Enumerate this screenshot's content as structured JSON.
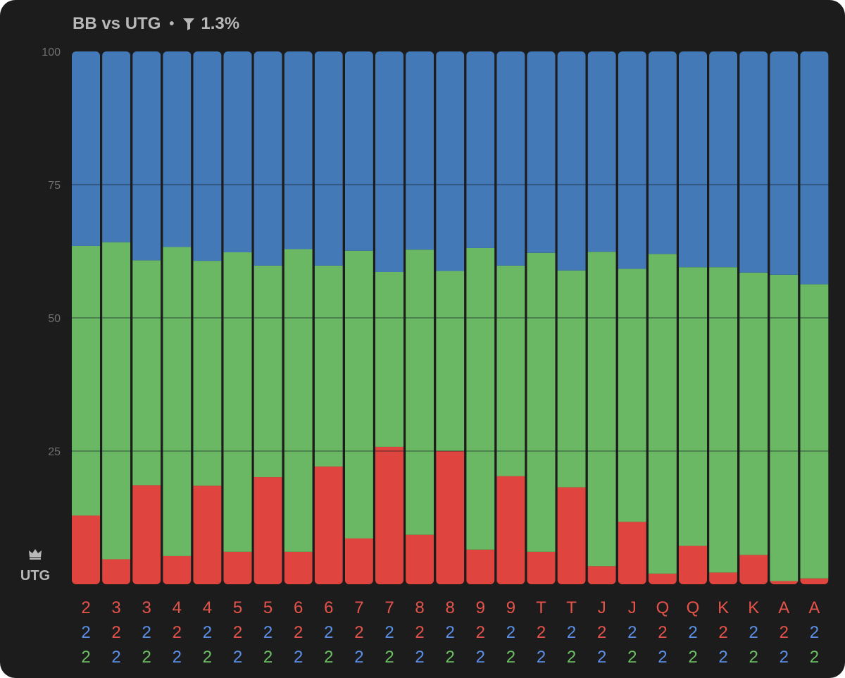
{
  "header": {
    "title": "BB vs UTG",
    "separator": "•",
    "filter_icon": "funnel-icon",
    "filter_value": "1.3%"
  },
  "position": {
    "icon": "crown-icon",
    "label": "UTG"
  },
  "colors": {
    "top": "#4479b8",
    "middle": "#6bb864",
    "bottom": "#df453e",
    "label_red": "#e5534b",
    "label_blue": "#5b8fe8",
    "label_green": "#6cbf63"
  },
  "chart_data": {
    "type": "bar",
    "stacked": true,
    "ylim": [
      0,
      100
    ],
    "yticks": [
      25,
      50,
      75,
      100
    ],
    "grid": true,
    "categories": [
      {
        "cards": [
          "2",
          "2",
          "2"
        ],
        "colors": [
          "red",
          "blue",
          "green"
        ]
      },
      {
        "cards": [
          "3",
          "2",
          "2"
        ],
        "colors": [
          "red",
          "red",
          "blue"
        ]
      },
      {
        "cards": [
          "3",
          "2",
          "2"
        ],
        "colors": [
          "red",
          "blue",
          "green"
        ]
      },
      {
        "cards": [
          "4",
          "2",
          "2"
        ],
        "colors": [
          "red",
          "red",
          "blue"
        ]
      },
      {
        "cards": [
          "4",
          "2",
          "2"
        ],
        "colors": [
          "red",
          "blue",
          "green"
        ]
      },
      {
        "cards": [
          "5",
          "2",
          "2"
        ],
        "colors": [
          "red",
          "red",
          "blue"
        ]
      },
      {
        "cards": [
          "5",
          "2",
          "2"
        ],
        "colors": [
          "red",
          "blue",
          "green"
        ]
      },
      {
        "cards": [
          "6",
          "2",
          "2"
        ],
        "colors": [
          "red",
          "red",
          "blue"
        ]
      },
      {
        "cards": [
          "6",
          "2",
          "2"
        ],
        "colors": [
          "red",
          "blue",
          "green"
        ]
      },
      {
        "cards": [
          "7",
          "2",
          "2"
        ],
        "colors": [
          "red",
          "red",
          "blue"
        ]
      },
      {
        "cards": [
          "7",
          "2",
          "2"
        ],
        "colors": [
          "red",
          "blue",
          "green"
        ]
      },
      {
        "cards": [
          "8",
          "2",
          "2"
        ],
        "colors": [
          "red",
          "red",
          "blue"
        ]
      },
      {
        "cards": [
          "8",
          "2",
          "2"
        ],
        "colors": [
          "red",
          "blue",
          "green"
        ]
      },
      {
        "cards": [
          "9",
          "2",
          "2"
        ],
        "colors": [
          "red",
          "red",
          "blue"
        ]
      },
      {
        "cards": [
          "9",
          "2",
          "2"
        ],
        "colors": [
          "red",
          "blue",
          "green"
        ]
      },
      {
        "cards": [
          "T",
          "2",
          "2"
        ],
        "colors": [
          "red",
          "red",
          "blue"
        ]
      },
      {
        "cards": [
          "T",
          "2",
          "2"
        ],
        "colors": [
          "red",
          "blue",
          "green"
        ]
      },
      {
        "cards": [
          "J",
          "2",
          "2"
        ],
        "colors": [
          "red",
          "red",
          "blue"
        ]
      },
      {
        "cards": [
          "J",
          "2",
          "2"
        ],
        "colors": [
          "red",
          "blue",
          "green"
        ]
      },
      {
        "cards": [
          "Q",
          "2",
          "2"
        ],
        "colors": [
          "red",
          "red",
          "blue"
        ]
      },
      {
        "cards": [
          "Q",
          "2",
          "2"
        ],
        "colors": [
          "red",
          "blue",
          "green"
        ]
      },
      {
        "cards": [
          "K",
          "2",
          "2"
        ],
        "colors": [
          "red",
          "red",
          "blue"
        ]
      },
      {
        "cards": [
          "K",
          "2",
          "2"
        ],
        "colors": [
          "red",
          "blue",
          "green"
        ]
      },
      {
        "cards": [
          "A",
          "2",
          "2"
        ],
        "colors": [
          "red",
          "red",
          "blue"
        ]
      },
      {
        "cards": [
          "A",
          "2",
          "2"
        ],
        "colors": [
          "red",
          "blue",
          "green"
        ]
      }
    ],
    "series": [
      {
        "color": "red",
        "values": [
          12.9,
          4.7,
          18.6,
          5.3,
          18.5,
          6.1,
          20.1,
          6.1,
          22.1,
          8.6,
          25.8,
          9.3,
          25.0,
          6.5,
          20.3,
          6.1,
          18.2,
          3.4,
          11.7,
          2.0,
          7.2,
          2.2,
          5.5,
          0.6,
          1.1
        ]
      },
      {
        "color": "green",
        "values": [
          50.6,
          59.5,
          42.2,
          58.0,
          42.2,
          56.2,
          39.7,
          56.8,
          37.7,
          54.0,
          32.8,
          53.5,
          33.8,
          56.6,
          39.5,
          56.1,
          40.7,
          59.0,
          47.5,
          60.0,
          52.3,
          57.3,
          53.0,
          57.5,
          55.2
        ]
      },
      {
        "color": "blue",
        "values": [
          36.5,
          35.8,
          39.2,
          36.7,
          39.3,
          37.7,
          40.2,
          37.1,
          40.2,
          37.4,
          41.4,
          37.2,
          41.2,
          36.9,
          40.2,
          37.8,
          41.1,
          37.6,
          40.8,
          38.0,
          40.5,
          40.5,
          41.5,
          41.9,
          43.7
        ]
      }
    ]
  }
}
